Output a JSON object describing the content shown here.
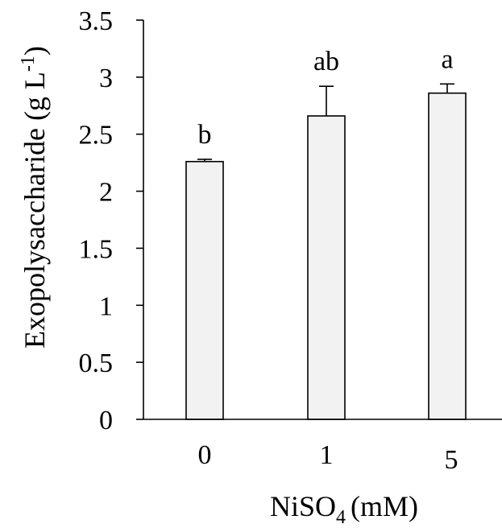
{
  "chart_data": {
    "type": "bar",
    "categories": [
      "0",
      "1",
      "5"
    ],
    "values": [
      2.26,
      2.66,
      2.86
    ],
    "errors": [
      0.02,
      0.26,
      0.08
    ],
    "significance": [
      "b",
      "ab",
      "a"
    ],
    "title": "",
    "xlabel": "NiSO4 (mM)",
    "xlabel_parts": {
      "main": "NiSO",
      "sub": "4",
      "rest": "(mM)"
    },
    "ylabel": "Exopolysaccharide (g L-1)",
    "ylabel_parts": {
      "main": "Exopolysaccharide (g L",
      "sup": "-1",
      "rest": ")"
    },
    "ylim": [
      0,
      3.5
    ],
    "yticks": [
      0,
      0.5,
      1,
      1.5,
      2,
      2.5,
      3,
      3.5
    ],
    "ytick_labels": [
      "0",
      "0.5",
      "1",
      "1.5",
      "2",
      "2.5",
      "3",
      "3.5"
    ],
    "bar_color": "#f2f2f2",
    "grid": false,
    "legend": "none"
  }
}
